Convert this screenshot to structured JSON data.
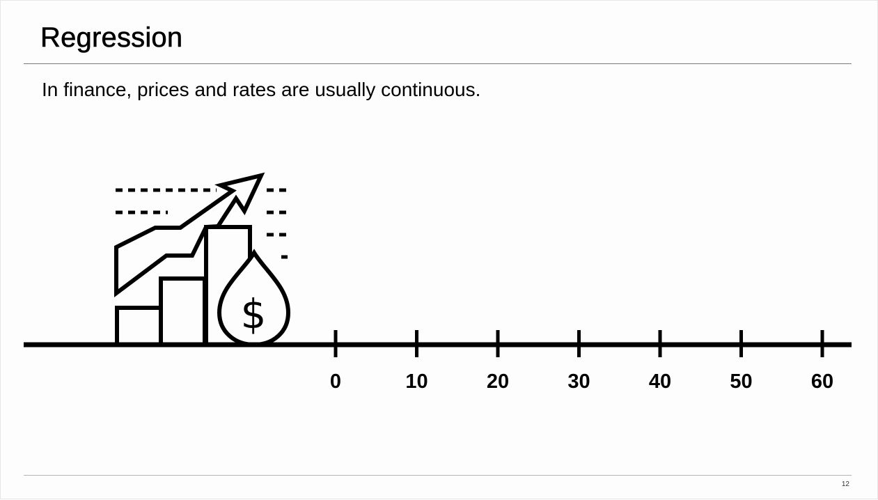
{
  "slide": {
    "title": "Regression",
    "subtitle": "In finance, prices and rates are usually continuous.",
    "page_number": "12"
  },
  "illustration": {
    "icon": "growth-chart-money-drop-icon",
    "symbol": "$"
  },
  "number_line": {
    "ticks": [
      0,
      10,
      20,
      30,
      40,
      50,
      60
    ],
    "tick_labels": [
      "0",
      "10",
      "20",
      "30",
      "40",
      "50",
      "60"
    ]
  },
  "colors": {
    "ink": "#000000",
    "rule": "#7a7a7a",
    "background": "#fdfdfd"
  }
}
